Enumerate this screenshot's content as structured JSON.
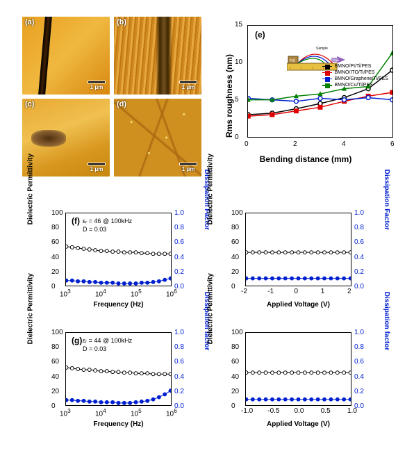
{
  "afm": {
    "panels": [
      {
        "id": "a",
        "label": "(a)",
        "scale_label": "1 μm"
      },
      {
        "id": "b",
        "label": "(b)",
        "scale_label": "1 μm"
      },
      {
        "id": "c",
        "label": "(c)",
        "scale_label": "1 μm"
      },
      {
        "id": "d",
        "label": "(d)",
        "scale_label": "1 μm"
      }
    ],
    "colorbar_gradient": [
      "#ffffff",
      "#f4c060",
      "#804000"
    ]
  },
  "chart_e": {
    "panel_label": "(e)",
    "ylabel": "Rms roughness (nm)",
    "xlabel": "Bending distance (mm)",
    "ylim": [
      0,
      15
    ],
    "ytick_step": 5,
    "xlim": [
      0,
      6
    ],
    "xtick_step": 2,
    "background_color": "#ffffff",
    "axis_color": "#000000",
    "tick_fontsize": 10,
    "label_fontsize": 12,
    "series": [
      {
        "name": "BMNO/Pt/Ti/PES",
        "color": "#000000",
        "marker": "circle",
        "x": [
          0,
          1,
          2,
          3,
          4,
          5,
          6
        ],
        "y": [
          3.0,
          3.2,
          3.8,
          4.5,
          5.3,
          6.5,
          9.0
        ]
      },
      {
        "name": "BMNO/ITO/Ti/PES",
        "color": "#e00000",
        "marker": "square",
        "x": [
          0,
          1,
          2,
          3,
          4,
          5,
          6
        ],
        "y": [
          2.8,
          3.0,
          3.5,
          4.0,
          4.8,
          5.5,
          6.0
        ]
      },
      {
        "name": "BMNO/Graphene/Ti/PES",
        "color": "#0020d0",
        "marker": "circle",
        "x": [
          0,
          1,
          2,
          3,
          4,
          5,
          6
        ],
        "y": [
          5.2,
          5.0,
          4.8,
          5.2,
          5.0,
          5.3,
          5.0
        ]
      },
      {
        "name": "BMNO/Cu/Ti/PES",
        "color": "#008000",
        "marker": "triangle",
        "x": [
          0,
          1,
          2,
          3,
          4,
          5,
          6
        ],
        "y": [
          5.0,
          5.0,
          5.5,
          5.8,
          6.5,
          6.8,
          11.3
        ]
      }
    ],
    "inset": {
      "labels": [
        "FIX",
        "Sample",
        "Push"
      ],
      "ruler_color": "#e8c040",
      "arc_colors": [
        "#e00000",
        "#0020d0",
        "#008000"
      ]
    }
  },
  "charts_freq_volt": {
    "left_ylabel": "Dielectric Permittivity",
    "right_ylabel_f": "Dissipation Factor",
    "right_ylabel_g": "Dissipation factor",
    "left_ylim": [
      0,
      100
    ],
    "left_ytick_step": 20,
    "right_ylim": [
      0,
      1.0
    ],
    "right_ytick_step": 0.2,
    "freq_xlabel": "Frequency (Hz)",
    "freq_xlim_log": [
      3,
      6
    ],
    "volt_xlabel": "Applied Voltage (V)",
    "perm_color": "#000000",
    "diss_color": "#0020d0",
    "marker": "circle",
    "marker_size": 3,
    "f": {
      "panel_label": "(f)",
      "annotation_er": "εᵣ = 46  @ 100kHz",
      "annotation_d": "D  = 0.03",
      "volt_xlim": [
        -2,
        2
      ],
      "volt_xtick_step": 1,
      "perm_vs_freq": [
        54,
        53,
        52,
        51,
        50,
        49,
        48,
        48,
        47,
        47,
        46,
        46,
        46,
        45,
        45,
        44,
        44,
        44,
        44
      ],
      "diss_vs_freq": [
        0.07,
        0.07,
        0.06,
        0.06,
        0.05,
        0.05,
        0.04,
        0.04,
        0.04,
        0.03,
        0.03,
        0.03,
        0.03,
        0.04,
        0.04,
        0.05,
        0.06,
        0.08,
        0.1
      ],
      "perm_vs_volt": [
        46,
        46,
        46,
        46,
        46,
        46,
        46,
        46,
        46,
        46,
        46,
        46,
        46,
        46,
        46,
        46,
        46
      ],
      "diss_vs_volt": [
        0.1,
        0.1,
        0.1,
        0.1,
        0.1,
        0.1,
        0.1,
        0.1,
        0.1,
        0.1,
        0.1,
        0.1,
        0.1,
        0.1,
        0.1,
        0.1,
        0.1
      ]
    },
    "g": {
      "panel_label": "(g)",
      "annotation_er": "εᵣ = 44  @ 100kHz",
      "annotation_d": "D  = 0.03",
      "volt_xlim": [
        -1.0,
        1.0
      ],
      "volt_xtick_step": 0.5,
      "perm_vs_freq": [
        52,
        51,
        50,
        49,
        49,
        48,
        47,
        47,
        46,
        46,
        45,
        45,
        44,
        44,
        44,
        43,
        43,
        43,
        43
      ],
      "diss_vs_freq": [
        0.07,
        0.07,
        0.06,
        0.06,
        0.05,
        0.05,
        0.04,
        0.04,
        0.04,
        0.03,
        0.03,
        0.03,
        0.04,
        0.05,
        0.06,
        0.08,
        0.11,
        0.15,
        0.2
      ],
      "perm_vs_volt": [
        45,
        45,
        45,
        45,
        45,
        45,
        45,
        45,
        45,
        45,
        45,
        45,
        45,
        45,
        45,
        45,
        45
      ],
      "diss_vs_volt": [
        0.08,
        0.08,
        0.08,
        0.08,
        0.08,
        0.08,
        0.08,
        0.08,
        0.08,
        0.08,
        0.08,
        0.08,
        0.08,
        0.08,
        0.08,
        0.08,
        0.08
      ]
    }
  }
}
